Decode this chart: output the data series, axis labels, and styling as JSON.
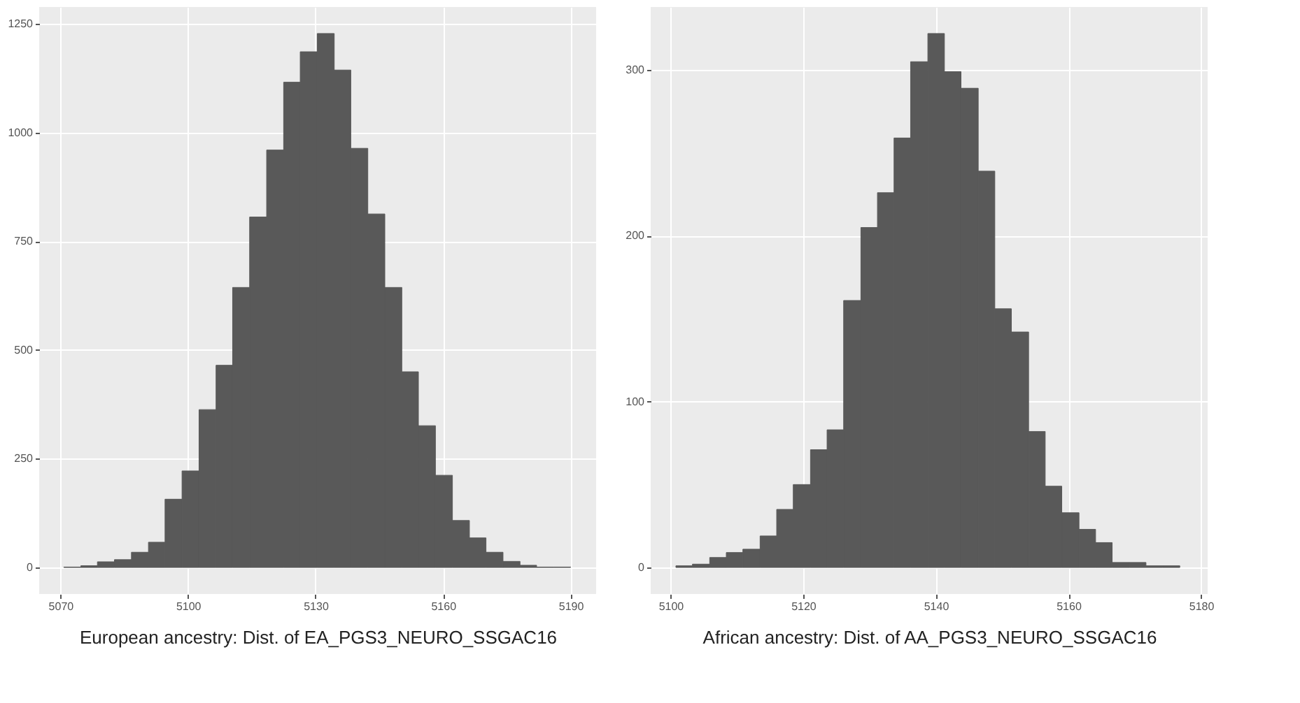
{
  "chart_data": [
    {
      "type": "histogram",
      "xlabel": "European ancestry: Dist. of EA_PGS3_NEURO_SSGAC16",
      "color": "#595959",
      "grid": true,
      "bins": [
        5070.8,
        5074.8,
        5078.7,
        5082.7,
        5086.7,
        5090.7,
        5094.6,
        5098.6,
        5102.6,
        5106.6,
        5110.5,
        5114.5,
        5118.5,
        5122.5,
        5126.4,
        5130.4,
        5134.4,
        5138.3,
        5142.3,
        5146.3,
        5150.3,
        5154.2,
        5158.2,
        5162.2,
        5166.2,
        5170.1,
        5174.1,
        5178.1,
        5182.0,
        5186.0,
        5190.0
      ],
      "values": [
        1,
        4,
        13,
        18,
        35,
        58,
        157,
        222,
        363,
        465,
        644,
        806,
        960,
        1116,
        1186,
        1228,
        1144,
        964,
        813,
        644,
        450,
        326,
        212,
        108,
        68,
        35,
        14,
        5,
        1,
        1
      ],
      "xlim": [
        5065,
        5196
      ],
      "xticks": [
        5070,
        5100,
        5130,
        5160,
        5190
      ],
      "ylim": [
        -61,
        1289
      ],
      "yticks": [
        0,
        250,
        500,
        750,
        1000,
        1250
      ]
    },
    {
      "type": "histogram",
      "xlabel": "African ancestry: Dist. of AA_PGS3_NEURO_SSGAC16",
      "color": "#595959",
      "grid": true,
      "bins": [
        5100.8,
        5103.3,
        5105.9,
        5108.4,
        5110.9,
        5113.5,
        5116.0,
        5118.5,
        5121.1,
        5123.6,
        5126.1,
        5128.7,
        5131.2,
        5133.7,
        5136.2,
        5138.8,
        5141.3,
        5143.8,
        5146.4,
        5148.9,
        5151.4,
        5154.0,
        5156.5,
        5159.0,
        5161.6,
        5164.1,
        5166.6,
        5169.2,
        5171.7,
        5174.2,
        5176.8
      ],
      "values": [
        1,
        2,
        6,
        9,
        11,
        19,
        35,
        50,
        71,
        83,
        161,
        205,
        226,
        259,
        305,
        322,
        299,
        289,
        239,
        156,
        142,
        82,
        49,
        33,
        23,
        15,
        3,
        3,
        1,
        1
      ],
      "xlim": [
        5097,
        5181
      ],
      "xticks": [
        5100,
        5120,
        5140,
        5160,
        5180
      ],
      "ylim": [
        -16,
        338
      ],
      "yticks": [
        0,
        100,
        200,
        300
      ]
    }
  ]
}
